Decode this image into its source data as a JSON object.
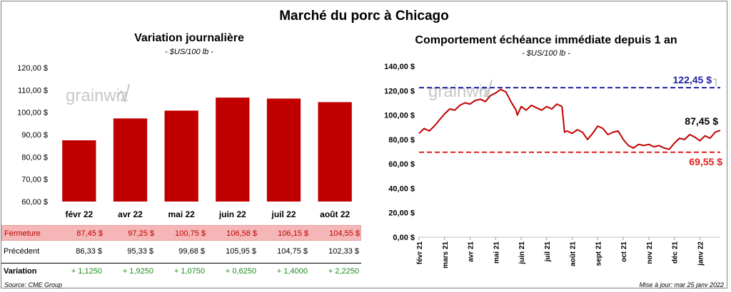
{
  "title": "Marché du porc à Chicago",
  "left_chart": {
    "title": "Variation  journalière",
    "subtitle": "- $US/100 lb -"
  },
  "right_chart": {
    "title": "Comportement  échéance immédiate depuis 1 an",
    "subtitle": "- $US/100 lb -"
  },
  "watermark": "grainwiz",
  "table": {
    "rows": [
      {
        "label": "Fermeture",
        "values": [
          "87,45  $",
          "97,25  $",
          "100,75  $",
          "106,58  $",
          "106,15  $",
          "104,55  $"
        ]
      },
      {
        "label": "Précédent",
        "values": [
          "86,33  $",
          "95,33  $",
          "99,68  $",
          "105,95  $",
          "104,75  $",
          "102,33  $"
        ]
      },
      {
        "label": "Variation",
        "values": [
          "+ 1,1250",
          "+ 1,9250",
          "+ 1,0750",
          "+ 0,6250",
          "+ 1,4000",
          "+ 2,2250"
        ]
      }
    ]
  },
  "footer": {
    "source": "Source: CME Group",
    "update": "Mise à jour: mar 25 janv 2022"
  },
  "chart_data": [
    {
      "type": "bar",
      "title": "Variation  journalière",
      "subtitle": "- $US/100 lb -",
      "categories": [
        "févr 22",
        "avr 22",
        "mai 22",
        "juin 22",
        "juil 22",
        "août 22"
      ],
      "values": [
        87.45,
        97.25,
        100.75,
        106.58,
        106.15,
        104.55
      ],
      "ylim": [
        60,
        120
      ],
      "yticks": [
        60,
        70,
        80,
        90,
        100,
        110,
        120
      ],
      "ytick_labels": [
        "60,00 $",
        "70,00 $",
        "80,00 $",
        "90,00 $",
        "100,00 $",
        "110,00 $",
        "120,00 $"
      ],
      "color": "#c00000"
    },
    {
      "type": "line",
      "title": "Comportement  échéance immédiate depuis 1 an",
      "subtitle": "- $US/100 lb -",
      "x_labels": [
        "févr 21",
        "mars 21",
        "avr 21",
        "mai 21",
        "juin 21",
        "juil 21",
        "août 21",
        "sept 21",
        "oct 21",
        "nov 21",
        "déc 21",
        "janv 22"
      ],
      "ylim": [
        0,
        140
      ],
      "yticks": [
        0,
        20,
        40,
        60,
        80,
        100,
        120,
        140
      ],
      "ytick_labels": [
        "0,00 $",
        "20,00 $",
        "40,00 $",
        "60,00 $",
        "80,00 $",
        "100,00 $",
        "120,00 $",
        "140,00 $"
      ],
      "series": [
        {
          "name": "Échéance immédiate",
          "color": "#c00000",
          "x": [
            0,
            0.2,
            0.4,
            0.6,
            0.8,
            1.0,
            1.2,
            1.4,
            1.6,
            1.8,
            2.0,
            2.2,
            2.4,
            2.6,
            2.8,
            3.0,
            3.2,
            3.4,
            3.6,
            3.8,
            3.85,
            4.0,
            4.2,
            4.4,
            4.6,
            4.8,
            5.0,
            5.2,
            5.4,
            5.6,
            5.7,
            5.8,
            6.0,
            6.2,
            6.4,
            6.6,
            6.8,
            7.0,
            7.2,
            7.4,
            7.6,
            7.8,
            8.0,
            8.2,
            8.4,
            8.6,
            8.8,
            9.0,
            9.2,
            9.4,
            9.6,
            9.8,
            10.0,
            10.2,
            10.4,
            10.6,
            10.8,
            11.0,
            11.2,
            11.4,
            11.6,
            11.8
          ],
          "y": [
            85,
            89,
            87,
            91,
            96,
            101,
            105,
            104,
            108,
            110,
            109,
            112,
            113,
            111,
            116,
            118,
            121,
            119,
            111,
            104,
            100,
            107,
            104,
            108,
            106,
            104,
            107,
            105,
            109,
            107,
            86,
            87,
            85,
            88,
            86,
            80,
            85,
            91,
            89,
            84,
            86,
            87,
            80,
            75,
            73,
            76,
            75,
            76,
            74,
            75,
            73,
            72,
            77,
            81,
            80,
            84,
            82,
            79,
            83,
            81,
            86,
            87.45
          ]
        }
      ],
      "reference_lines": [
        {
          "name": "max",
          "value": 122.45,
          "label": "122,45 $",
          "color": "#1f1fa0",
          "style": "dashed"
        },
        {
          "name": "last",
          "value": 87.45,
          "label": "87,45 $",
          "color": "#000000",
          "style": "label"
        },
        {
          "name": "min",
          "value": 69.55,
          "label": "69,55 $",
          "color": "#e02020",
          "style": "dashed"
        }
      ]
    }
  ]
}
